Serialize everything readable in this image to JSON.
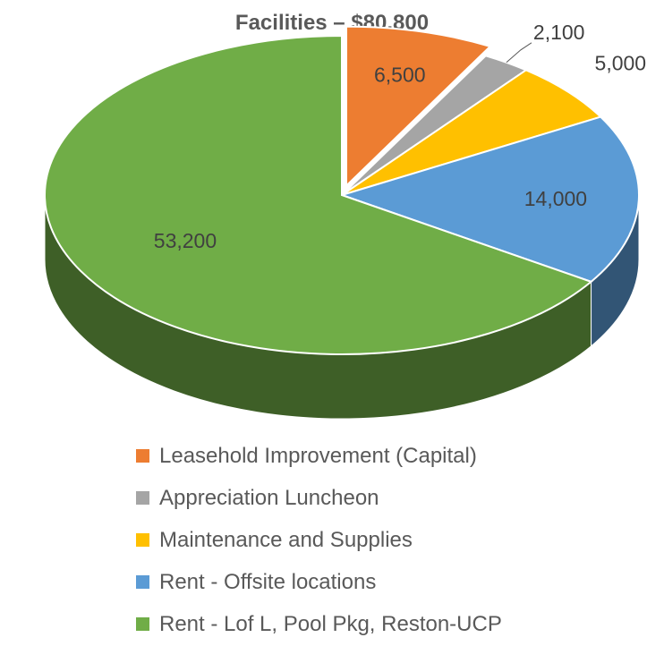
{
  "chart_data": {
    "type": "pie",
    "title": "Facilities – $80,800",
    "slices": [
      {
        "label": "Leasehold Improvement (Capital)",
        "value": 6500,
        "value_label": "6,500",
        "color": "#ED7D31"
      },
      {
        "label": "Appreciation Luncheon",
        "value": 2100,
        "value_label": "2,100",
        "color": "#A5A5A5"
      },
      {
        "label": "Maintenance and Supplies",
        "value": 5000,
        "value_label": "5,000",
        "color": "#FFC000"
      },
      {
        "label": "Rent - Offsite locations",
        "value": 14000,
        "value_label": "14,000",
        "color": "#5B9BD5"
      },
      {
        "label": "Rent - Lof L, Pool Pkg, Reston-UCP",
        "value": 53200,
        "value_label": "53,200",
        "color": "#70AD47"
      }
    ],
    "legend_position": "bottom",
    "style": "3d"
  }
}
